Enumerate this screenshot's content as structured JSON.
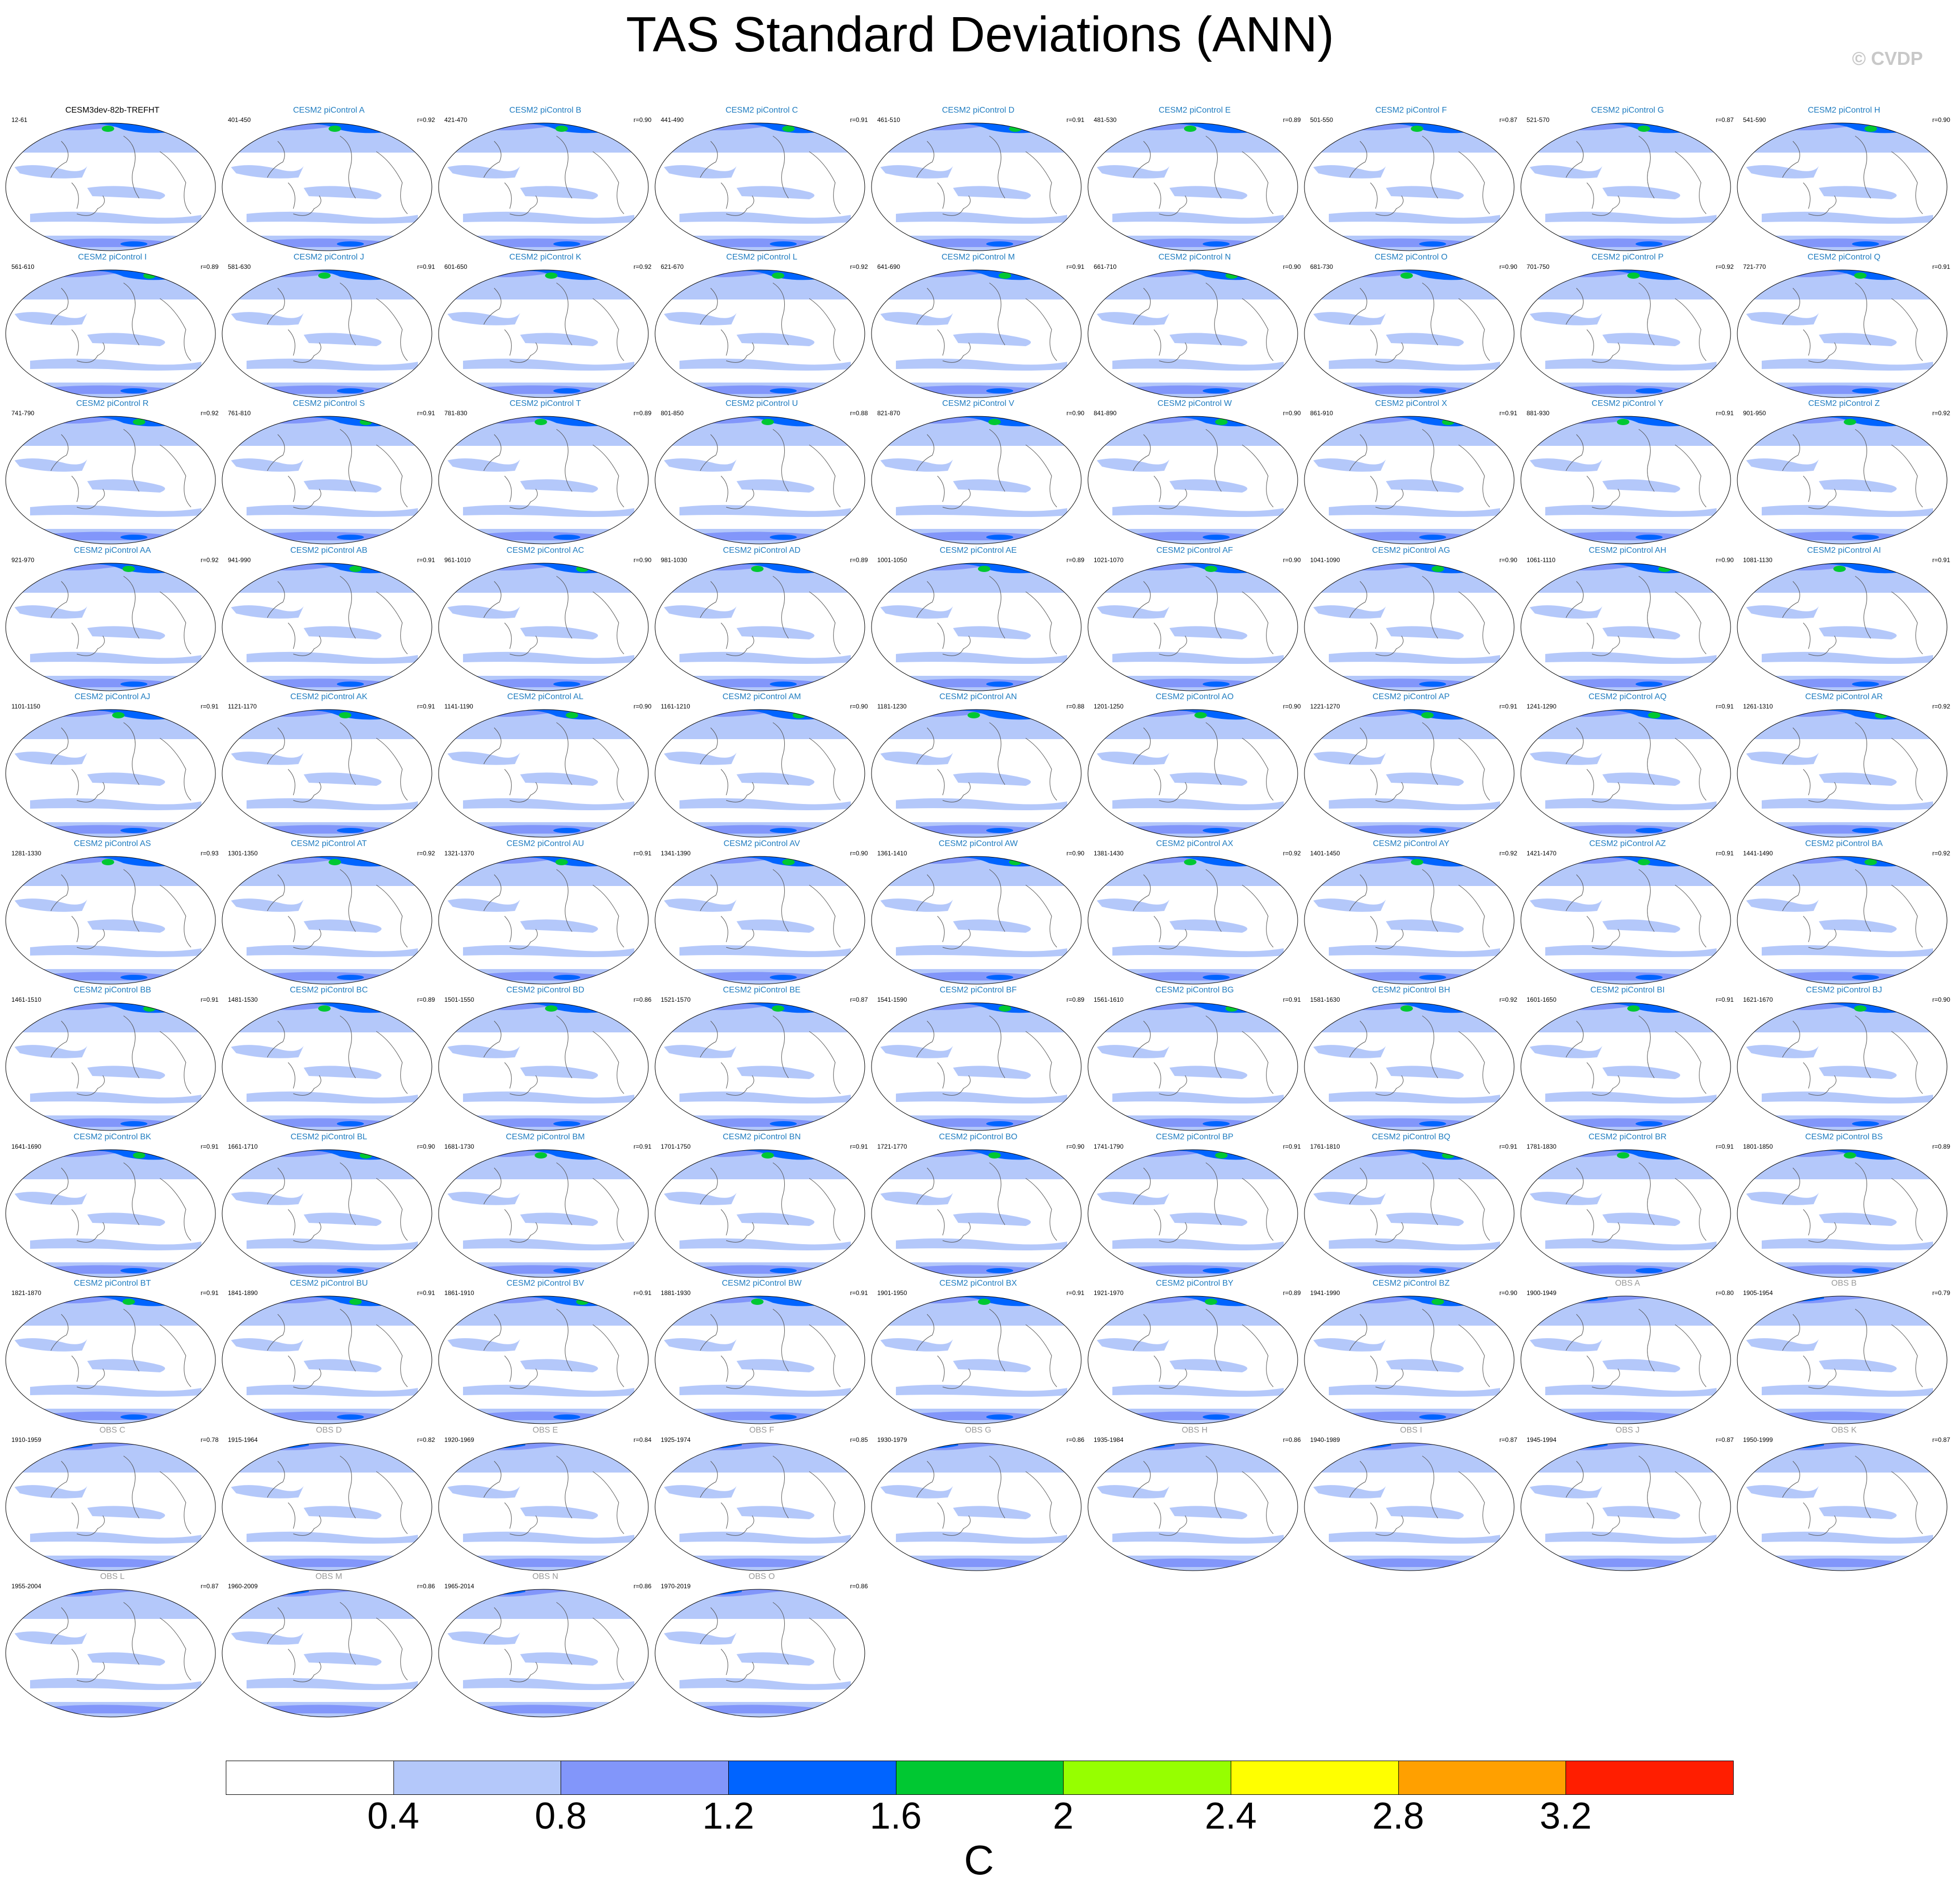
{
  "title": "TAS Standard Deviations (ANN)",
  "credit": "© CVDP",
  "colorbar": {
    "unit": "C",
    "labels": [
      "0.4",
      "0.8",
      "1.2",
      "1.6",
      "2",
      "2.4",
      "2.8",
      "3.2"
    ],
    "colors": [
      "#ffffff",
      "#b4c8fa",
      "#8296fa",
      "#0064ff",
      "#00c832",
      "#96ff00",
      "#ffff00",
      "#ffa000",
      "#ff1e00"
    ]
  },
  "chart_data": {
    "type": "map_panels",
    "variable": "TAS Standard Deviations (ANN)",
    "units": "C",
    "contour_levels": [
      0.4,
      0.8,
      1.2,
      1.6,
      2.0,
      2.4,
      2.8,
      3.2
    ],
    "panels": [
      {
        "name": "CESM3dev-82b-TREFHT",
        "years": "12-61",
        "corr": ""
      },
      {
        "name": "CESM2 piControl A",
        "years": "401-450",
        "corr": "r=0.92"
      },
      {
        "name": "CESM2 piControl B",
        "years": "421-470",
        "corr": "r=0.90"
      },
      {
        "name": "CESM2 piControl C",
        "years": "441-490",
        "corr": "r=0.91"
      },
      {
        "name": "CESM2 piControl D",
        "years": "461-510",
        "corr": "r=0.91"
      },
      {
        "name": "CESM2 piControl E",
        "years": "481-530",
        "corr": "r=0.89"
      },
      {
        "name": "CESM2 piControl F",
        "years": "501-550",
        "corr": "r=0.87"
      },
      {
        "name": "CESM2 piControl G",
        "years": "521-570",
        "corr": "r=0.87"
      },
      {
        "name": "CESM2 piControl H",
        "years": "541-590",
        "corr": "r=0.90"
      },
      {
        "name": "CESM2 piControl I",
        "years": "561-610",
        "corr": "r=0.89"
      },
      {
        "name": "CESM2 piControl J",
        "years": "581-630",
        "corr": "r=0.91"
      },
      {
        "name": "CESM2 piControl K",
        "years": "601-650",
        "corr": "r=0.92"
      },
      {
        "name": "CESM2 piControl L",
        "years": "621-670",
        "corr": "r=0.92"
      },
      {
        "name": "CESM2 piControl M",
        "years": "641-690",
        "corr": "r=0.91"
      },
      {
        "name": "CESM2 piControl N",
        "years": "661-710",
        "corr": "r=0.90"
      },
      {
        "name": "CESM2 piControl O",
        "years": "681-730",
        "corr": "r=0.90"
      },
      {
        "name": "CESM2 piControl P",
        "years": "701-750",
        "corr": "r=0.92"
      },
      {
        "name": "CESM2 piControl Q",
        "years": "721-770",
        "corr": "r=0.91"
      },
      {
        "name": "CESM2 piControl R",
        "years": "741-790",
        "corr": "r=0.92"
      },
      {
        "name": "CESM2 piControl S",
        "years": "761-810",
        "corr": "r=0.91"
      },
      {
        "name": "CESM2 piControl T",
        "years": "781-830",
        "corr": "r=0.89"
      },
      {
        "name": "CESM2 piControl U",
        "years": "801-850",
        "corr": "r=0.88"
      },
      {
        "name": "CESM2 piControl V",
        "years": "821-870",
        "corr": "r=0.90"
      },
      {
        "name": "CESM2 piControl W",
        "years": "841-890",
        "corr": "r=0.90"
      },
      {
        "name": "CESM2 piControl X",
        "years": "861-910",
        "corr": "r=0.91"
      },
      {
        "name": "CESM2 piControl Y",
        "years": "881-930",
        "corr": "r=0.91"
      },
      {
        "name": "CESM2 piControl Z",
        "years": "901-950",
        "corr": "r=0.92"
      },
      {
        "name": "CESM2 piControl AA",
        "years": "921-970",
        "corr": "r=0.92"
      },
      {
        "name": "CESM2 piControl AB",
        "years": "941-990",
        "corr": "r=0.91"
      },
      {
        "name": "CESM2 piControl AC",
        "years": "961-1010",
        "corr": "r=0.90"
      },
      {
        "name": "CESM2 piControl AD",
        "years": "981-1030",
        "corr": "r=0.89"
      },
      {
        "name": "CESM2 piControl AE",
        "years": "1001-1050",
        "corr": "r=0.89"
      },
      {
        "name": "CESM2 piControl AF",
        "years": "1021-1070",
        "corr": "r=0.90"
      },
      {
        "name": "CESM2 piControl AG",
        "years": "1041-1090",
        "corr": "r=0.90"
      },
      {
        "name": "CESM2 piControl AH",
        "years": "1061-1110",
        "corr": "r=0.90"
      },
      {
        "name": "CESM2 piControl AI",
        "years": "1081-1130",
        "corr": "r=0.91"
      },
      {
        "name": "CESM2 piControl AJ",
        "years": "1101-1150",
        "corr": "r=0.91"
      },
      {
        "name": "CESM2 piControl AK",
        "years": "1121-1170",
        "corr": "r=0.91"
      },
      {
        "name": "CESM2 piControl AL",
        "years": "1141-1190",
        "corr": "r=0.90"
      },
      {
        "name": "CESM2 piControl AM",
        "years": "1161-1210",
        "corr": "r=0.90"
      },
      {
        "name": "CESM2 piControl AN",
        "years": "1181-1230",
        "corr": "r=0.88"
      },
      {
        "name": "CESM2 piControl AO",
        "years": "1201-1250",
        "corr": "r=0.90"
      },
      {
        "name": "CESM2 piControl AP",
        "years": "1221-1270",
        "corr": "r=0.91"
      },
      {
        "name": "CESM2 piControl AQ",
        "years": "1241-1290",
        "corr": "r=0.91"
      },
      {
        "name": "CESM2 piControl AR",
        "years": "1261-1310",
        "corr": "r=0.92"
      },
      {
        "name": "CESM2 piControl AS",
        "years": "1281-1330",
        "corr": "r=0.93"
      },
      {
        "name": "CESM2 piControl AT",
        "years": "1301-1350",
        "corr": "r=0.92"
      },
      {
        "name": "CESM2 piControl AU",
        "years": "1321-1370",
        "corr": "r=0.91"
      },
      {
        "name": "CESM2 piControl AV",
        "years": "1341-1390",
        "corr": "r=0.90"
      },
      {
        "name": "CESM2 piControl AW",
        "years": "1361-1410",
        "corr": "r=0.90"
      },
      {
        "name": "CESM2 piControl AX",
        "years": "1381-1430",
        "corr": "r=0.92"
      },
      {
        "name": "CESM2 piControl AY",
        "years": "1401-1450",
        "corr": "r=0.92"
      },
      {
        "name": "CESM2 piControl AZ",
        "years": "1421-1470",
        "corr": "r=0.91"
      },
      {
        "name": "CESM2 piControl BA",
        "years": "1441-1490",
        "corr": "r=0.92"
      },
      {
        "name": "CESM2 piControl BB",
        "years": "1461-1510",
        "corr": "r=0.91"
      },
      {
        "name": "CESM2 piControl BC",
        "years": "1481-1530",
        "corr": "r=0.89"
      },
      {
        "name": "CESM2 piControl BD",
        "years": "1501-1550",
        "corr": "r=0.86"
      },
      {
        "name": "CESM2 piControl BE",
        "years": "1521-1570",
        "corr": "r=0.87"
      },
      {
        "name": "CESM2 piControl BF",
        "years": "1541-1590",
        "corr": "r=0.89"
      },
      {
        "name": "CESM2 piControl BG",
        "years": "1561-1610",
        "corr": "r=0.91"
      },
      {
        "name": "CESM2 piControl BH",
        "years": "1581-1630",
        "corr": "r=0.92"
      },
      {
        "name": "CESM2 piControl BI",
        "years": "1601-1650",
        "corr": "r=0.91"
      },
      {
        "name": "CESM2 piControl BJ",
        "years": "1621-1670",
        "corr": "r=0.90"
      },
      {
        "name": "CESM2 piControl BK",
        "years": "1641-1690",
        "corr": "r=0.91"
      },
      {
        "name": "CESM2 piControl BL",
        "years": "1661-1710",
        "corr": "r=0.90"
      },
      {
        "name": "CESM2 piControl BM",
        "years": "1681-1730",
        "corr": "r=0.91"
      },
      {
        "name": "CESM2 piControl BN",
        "years": "1701-1750",
        "corr": "r=0.91"
      },
      {
        "name": "CESM2 piControl BO",
        "years": "1721-1770",
        "corr": "r=0.90"
      },
      {
        "name": "CESM2 piControl BP",
        "years": "1741-1790",
        "corr": "r=0.91"
      },
      {
        "name": "CESM2 piControl BQ",
        "years": "1761-1810",
        "corr": "r=0.91"
      },
      {
        "name": "CESM2 piControl BR",
        "years": "1781-1830",
        "corr": "r=0.91"
      },
      {
        "name": "CESM2 piControl BS",
        "years": "1801-1850",
        "corr": "r=0.89"
      },
      {
        "name": "CESM2 piControl BT",
        "years": "1821-1870",
        "corr": "r=0.91"
      },
      {
        "name": "CESM2 piControl BU",
        "years": "1841-1890",
        "corr": "r=0.91"
      },
      {
        "name": "CESM2 piControl BV",
        "years": "1861-1910",
        "corr": "r=0.91"
      },
      {
        "name": "CESM2 piControl BW",
        "years": "1881-1930",
        "corr": "r=0.91"
      },
      {
        "name": "CESM2 piControl BX",
        "years": "1901-1950",
        "corr": "r=0.91"
      },
      {
        "name": "CESM2 piControl BY",
        "years": "1921-1970",
        "corr": "r=0.89"
      },
      {
        "name": "CESM2 piControl BZ",
        "years": "1941-1990",
        "corr": "r=0.90"
      },
      {
        "name": "OBS A",
        "years": "1900-1949",
        "corr": "r=0.80"
      },
      {
        "name": "OBS B",
        "years": "1905-1954",
        "corr": "r=0.79"
      },
      {
        "name": "OBS C",
        "years": "1910-1959",
        "corr": "r=0.78"
      },
      {
        "name": "OBS D",
        "years": "1915-1964",
        "corr": "r=0.82"
      },
      {
        "name": "OBS E",
        "years": "1920-1969",
        "corr": "r=0.84"
      },
      {
        "name": "OBS F",
        "years": "1925-1974",
        "corr": "r=0.85"
      },
      {
        "name": "OBS G",
        "years": "1930-1979",
        "corr": "r=0.86"
      },
      {
        "name": "OBS H",
        "years": "1935-1984",
        "corr": "r=0.86"
      },
      {
        "name": "OBS I",
        "years": "1940-1989",
        "corr": "r=0.87"
      },
      {
        "name": "OBS J",
        "years": "1945-1994",
        "corr": "r=0.87"
      },
      {
        "name": "OBS K",
        "years": "1950-1999",
        "corr": "r=0.87"
      },
      {
        "name": "OBS L",
        "years": "1955-2004",
        "corr": "r=0.87"
      },
      {
        "name": "OBS M",
        "years": "1960-2009",
        "corr": "r=0.86"
      },
      {
        "name": "OBS N",
        "years": "1965-2014",
        "corr": "r=0.86"
      },
      {
        "name": "OBS O",
        "years": "1970-2019",
        "corr": "r=0.86"
      }
    ]
  }
}
